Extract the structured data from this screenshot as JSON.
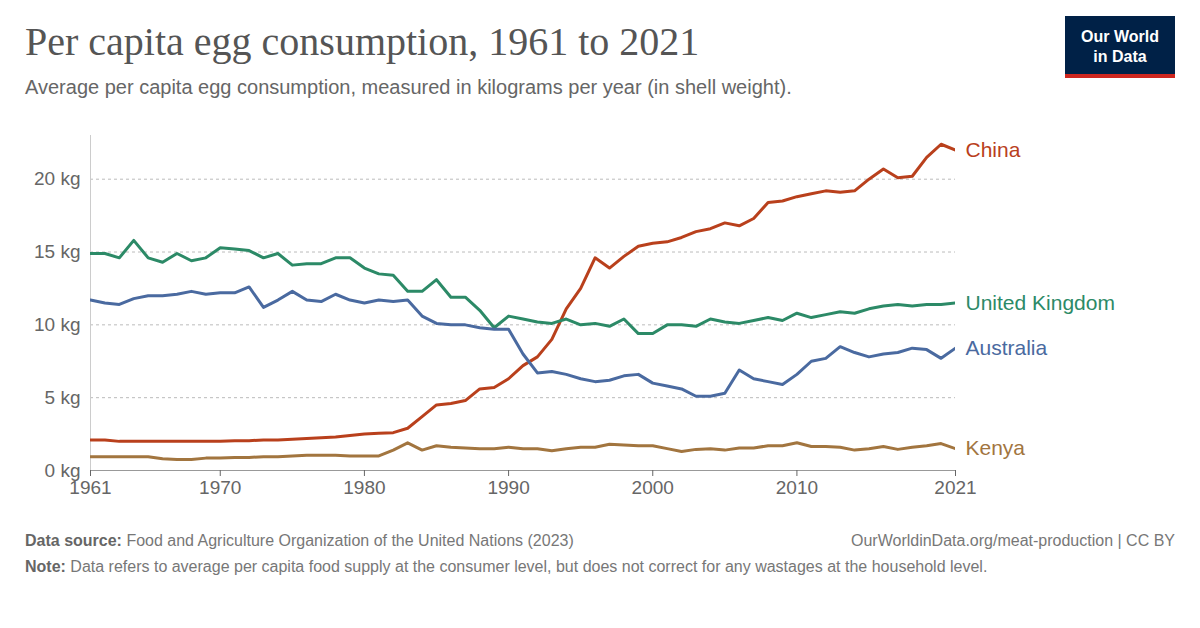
{
  "chart_data": {
    "type": "line",
    "title": "Per capita egg consumption, 1961 to 2021",
    "subtitle": "Average per capita egg consumption, measured in kilograms per year (in shell weight).",
    "logo": [
      "Our World",
      "in Data"
    ],
    "source_label": "Data source:",
    "source": "Food and Agriculture Organization of the United Nations (2023)",
    "source_link": "OurWorldinData.org/meat-production | CC BY",
    "note_label": "Note:",
    "note": "Data refers to average per capita food supply at the consumer level, but does not correct for any wastages at the household level.",
    "x": [
      1961,
      1962,
      1963,
      1964,
      1965,
      1966,
      1967,
      1968,
      1969,
      1970,
      1971,
      1972,
      1973,
      1974,
      1975,
      1976,
      1977,
      1978,
      1979,
      1980,
      1981,
      1982,
      1983,
      1984,
      1985,
      1986,
      1987,
      1988,
      1989,
      1990,
      1991,
      1992,
      1993,
      1994,
      1995,
      1996,
      1997,
      1998,
      1999,
      2000,
      2001,
      2002,
      2003,
      2004,
      2005,
      2006,
      2007,
      2008,
      2009,
      2010,
      2011,
      2012,
      2013,
      2014,
      2015,
      2016,
      2017,
      2018,
      2019,
      2020,
      2021
    ],
    "series": [
      {
        "name": "China",
        "color": "#b9401c",
        "values": [
          2.1,
          2.1,
          2.0,
          2.0,
          2.0,
          2.0,
          2.0,
          2.0,
          2.0,
          2.0,
          2.05,
          2.05,
          2.1,
          2.1,
          2.15,
          2.2,
          2.25,
          2.3,
          2.4,
          2.5,
          2.55,
          2.6,
          2.9,
          3.7,
          4.5,
          4.6,
          4.8,
          5.6,
          5.7,
          6.3,
          7.2,
          7.8,
          9.0,
          11.1,
          12.5,
          14.6,
          13.9,
          14.7,
          15.4,
          15.6,
          15.7,
          16.0,
          16.4,
          16.6,
          17.0,
          16.8,
          17.3,
          18.4,
          18.5,
          18.8,
          19.0,
          19.2,
          19.1,
          19.2,
          20.0,
          20.7,
          20.1,
          20.2,
          21.5,
          22.4,
          22.0
        ]
      },
      {
        "name": "United Kingdom",
        "color": "#2c8a67",
        "values": [
          14.9,
          14.9,
          14.6,
          15.8,
          14.6,
          14.3,
          14.9,
          14.4,
          14.6,
          15.3,
          15.2,
          15.1,
          14.6,
          14.9,
          14.1,
          14.2,
          14.2,
          14.6,
          14.6,
          13.9,
          13.5,
          13.4,
          12.3,
          12.3,
          13.1,
          11.9,
          11.9,
          11.0,
          9.8,
          10.6,
          10.4,
          10.2,
          10.1,
          10.4,
          10.0,
          10.1,
          9.9,
          10.4,
          9.4,
          9.4,
          10.0,
          10.0,
          9.9,
          10.4,
          10.2,
          10.1,
          10.3,
          10.5,
          10.3,
          10.8,
          10.5,
          10.7,
          10.9,
          10.8,
          11.1,
          11.3,
          11.4,
          11.3,
          11.4,
          11.4,
          11.5
        ]
      },
      {
        "name": "Australia",
        "color": "#4a6aa0",
        "values": [
          11.7,
          11.5,
          11.4,
          11.8,
          12.0,
          12.0,
          12.1,
          12.3,
          12.1,
          12.2,
          12.2,
          12.6,
          11.2,
          11.7,
          12.3,
          11.7,
          11.6,
          12.1,
          11.7,
          11.5,
          11.7,
          11.6,
          11.7,
          10.6,
          10.1,
          10.0,
          10.0,
          9.8,
          9.7,
          9.7,
          8.0,
          6.7,
          6.8,
          6.6,
          6.3,
          6.1,
          6.2,
          6.5,
          6.6,
          6.0,
          5.8,
          5.6,
          5.1,
          5.1,
          5.3,
          6.9,
          6.3,
          6.1,
          5.9,
          6.6,
          7.5,
          7.7,
          8.5,
          8.1,
          7.8,
          8.0,
          8.1,
          8.4,
          8.3,
          7.7,
          8.4
        ]
      },
      {
        "name": "Kenya",
        "color": "#a2753f",
        "values": [
          0.95,
          0.95,
          0.95,
          0.95,
          0.95,
          0.8,
          0.75,
          0.75,
          0.85,
          0.85,
          0.9,
          0.9,
          0.95,
          0.95,
          1.0,
          1.05,
          1.05,
          1.05,
          1.0,
          1.0,
          1.0,
          1.4,
          1.9,
          1.4,
          1.7,
          1.6,
          1.55,
          1.5,
          1.5,
          1.6,
          1.5,
          1.5,
          1.35,
          1.5,
          1.6,
          1.6,
          1.8,
          1.75,
          1.7,
          1.7,
          1.5,
          1.3,
          1.45,
          1.5,
          1.4,
          1.55,
          1.55,
          1.7,
          1.7,
          1.9,
          1.65,
          1.65,
          1.6,
          1.4,
          1.5,
          1.65,
          1.45,
          1.6,
          1.7,
          1.85,
          1.5
        ]
      }
    ],
    "xlim": [
      1961,
      2021
    ],
    "xticks": [
      1961,
      1970,
      1980,
      1990,
      2000,
      2010,
      2021
    ],
    "ylim": [
      0,
      23
    ],
    "yticks": [
      {
        "value": 0,
        "label": "0 kg"
      },
      {
        "value": 5,
        "label": "5 kg"
      },
      {
        "value": 10,
        "label": "10 kg"
      },
      {
        "value": 15,
        "label": "15 kg"
      },
      {
        "value": 20,
        "label": "20 kg"
      }
    ],
    "grid": true
  }
}
